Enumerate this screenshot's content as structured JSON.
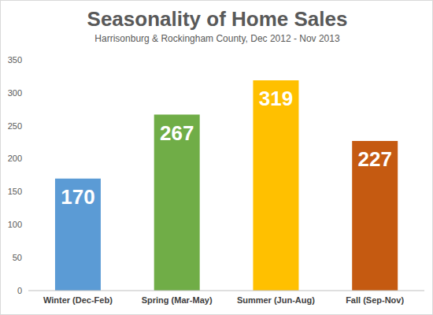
{
  "chart_data": {
    "type": "bar",
    "title": "Seasonality of Home Sales",
    "subtitle": "Harrisonburg & Rockingham County, Dec 2012 - Nov 2013",
    "categories": [
      "Winter (Dec-Feb)",
      "Spring (Mar-May)",
      "Summer (Jun-Aug)",
      "Fall (Sep-Nov)"
    ],
    "values": [
      170,
      267,
      319,
      227
    ],
    "colors": [
      "#5b9bd5",
      "#70ad47",
      "#ffc000",
      "#c55a11"
    ],
    "ylim": [
      0,
      350
    ],
    "yticks": [
      0,
      50,
      100,
      150,
      200,
      250,
      300,
      350
    ],
    "grid": false,
    "data_labels": true
  }
}
